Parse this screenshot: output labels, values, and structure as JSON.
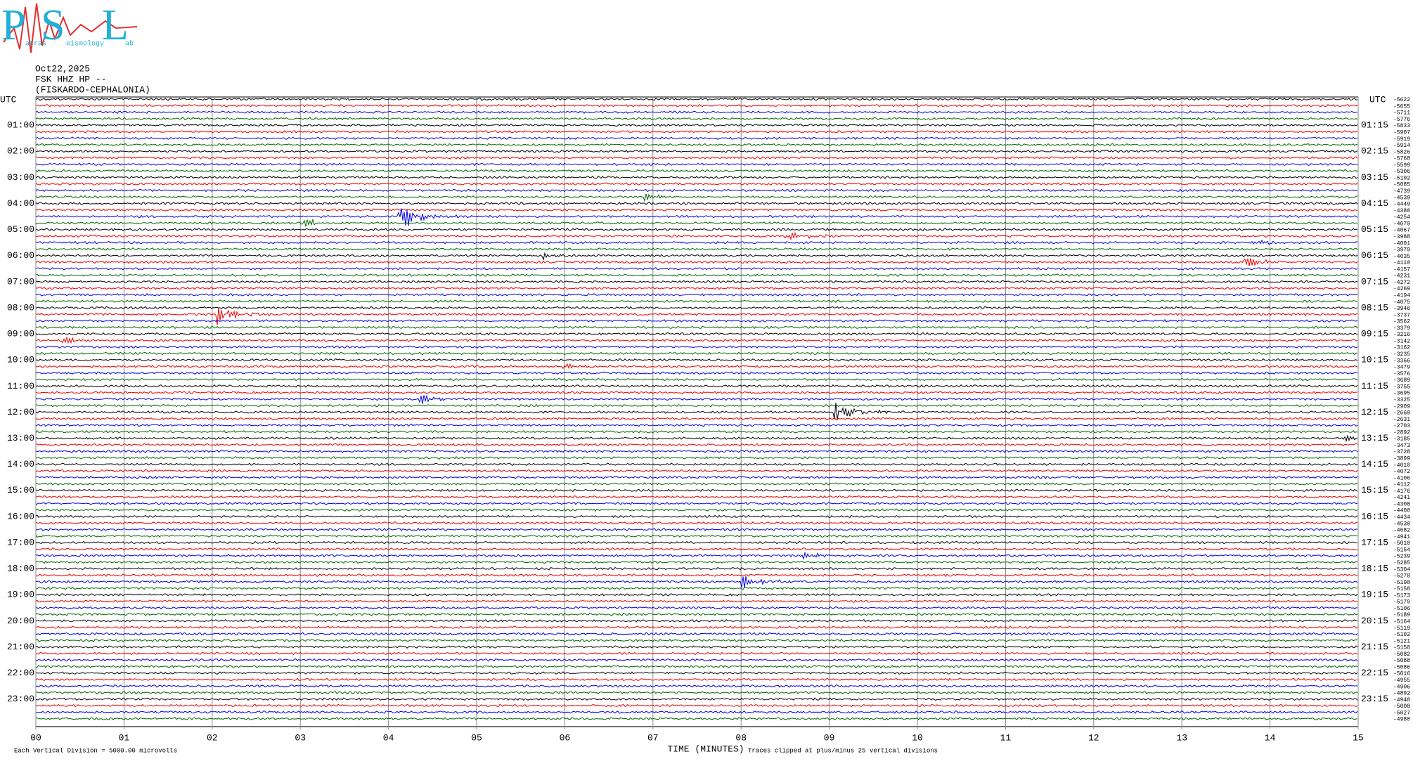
{
  "logo": {
    "letters": [
      "P",
      "S",
      "L"
    ],
    "words": [
      "atras",
      "eismology",
      "ab"
    ]
  },
  "header": {
    "date": "Oct22,2025",
    "channel": "FSK HHZ HP --",
    "station": "(FISKARDO-CEPHALONIA)"
  },
  "utc_left": "UTC",
  "utc_right": "UTC",
  "hours_left": [
    "01:00",
    "02:00",
    "03:00",
    "04:00",
    "05:00",
    "06:00",
    "07:00",
    "08:00",
    "09:00",
    "10:00",
    "11:00",
    "12:00",
    "13:00",
    "14:00",
    "15:00",
    "16:00",
    "17:00",
    "18:00",
    "19:00",
    "20:00",
    "21:00",
    "22:00",
    "23:00"
  ],
  "hours_right": [
    "01:15",
    "02:15",
    "03:15",
    "04:15",
    "05:15",
    "06:15",
    "07:15",
    "08:15",
    "09:15",
    "10:15",
    "11:15",
    "12:15",
    "13:15",
    "14:15",
    "15:15",
    "16:15",
    "17:15",
    "18:15",
    "19:15",
    "20:15",
    "21:15",
    "22:15",
    "23:15"
  ],
  "minutes": [
    "00",
    "01",
    "02",
    "03",
    "04",
    "05",
    "06",
    "07",
    "08",
    "09",
    "10",
    "11",
    "12",
    "13",
    "14",
    "15"
  ],
  "x_axis_label": "TIME (MINUTES)",
  "footer": {
    "scale": "Each Vertical Division = 5000.00 microvolts",
    "clip": "Traces clipped at plus/minus 25 vertical divisions"
  },
  "offsets": [
    -5622,
    -5655,
    -5711,
    -5776,
    -5833,
    -5907,
    -5919,
    -5914,
    -5826,
    -5768,
    -5599,
    -5306,
    -5192,
    -5085,
    -4739,
    -4539,
    -4449,
    -4380,
    -4254,
    -4079,
    -4067,
    -3988,
    -4001,
    -3979,
    -4035,
    -4110,
    -4157,
    -4231,
    -4272,
    -4269,
    -4194,
    -4075,
    -3946,
    -3737,
    -3562,
    -3379,
    -3216,
    -3142,
    -3162,
    -3235,
    -3366,
    -3479,
    -3576,
    -3689,
    -3755,
    -3695,
    -3325,
    -2909,
    -2669,
    -2631,
    -2703,
    -2892,
    -3185,
    -3473,
    -3728,
    -3899,
    -4010,
    -4072,
    -4106,
    -4112,
    -4176,
    -4241,
    -4308,
    -4400,
    -4434,
    -4530,
    -4682,
    -4941,
    -5010,
    -5154,
    -5239,
    -5285,
    -5304,
    -5278,
    -5198,
    -5158,
    -5173,
    -5179,
    -5106,
    -5189,
    -5164,
    -5119,
    -5102,
    -5121,
    -5150,
    -5082,
    -5088,
    -5086,
    -5016,
    -4955,
    -4906,
    -4892,
    -4948,
    -5008,
    -5027,
    -4980
  ]
}
